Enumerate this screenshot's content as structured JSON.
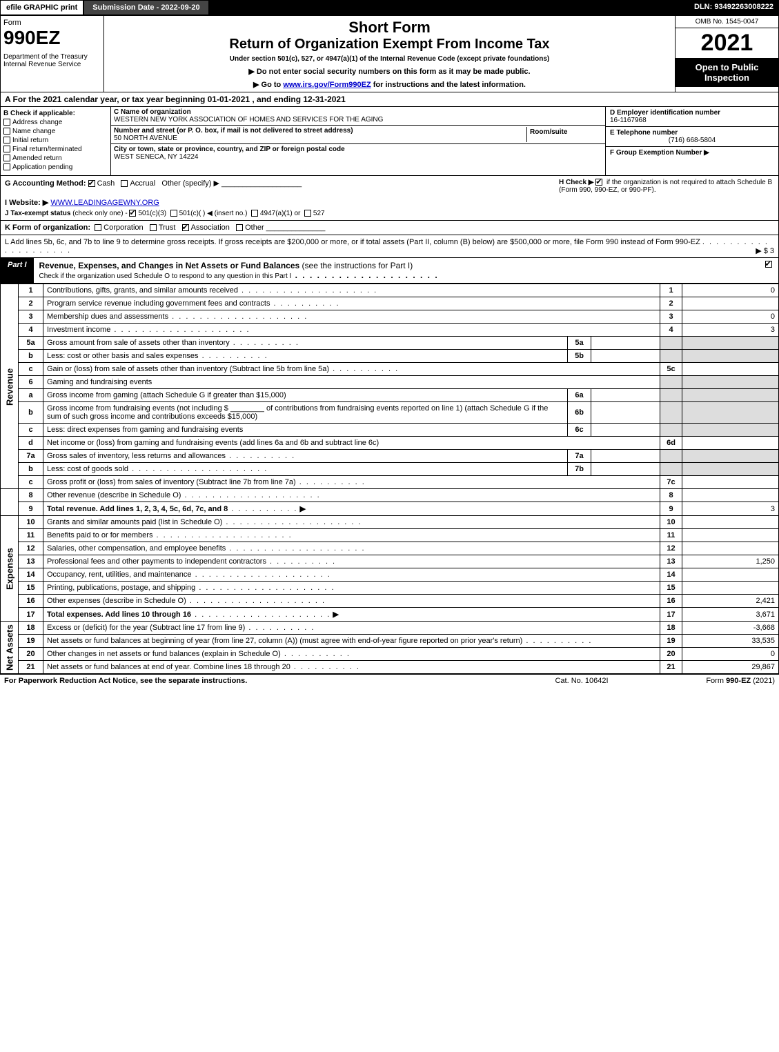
{
  "top": {
    "efile": "efile GRAPHIC print",
    "submission_date_label": "Submission Date - 2022-09-20",
    "dln": "DLN: 93492263008222"
  },
  "header": {
    "form_word": "Form",
    "form_number": "990EZ",
    "dept": "Department of the Treasury\nInternal Revenue Service",
    "short_form": "Short Form",
    "title": "Return of Organization Exempt From Income Tax",
    "under": "Under section 501(c), 527, or 4947(a)(1) of the Internal Revenue Code (except private foundations)",
    "ssn_note": "▶ Do not enter social security numbers on this form as it may be made public.",
    "goto_prefix": "▶ Go to ",
    "goto_link": "www.irs.gov/Form990EZ",
    "goto_suffix": " for instructions and the latest information.",
    "omb": "OMB No. 1545-0047",
    "year": "2021",
    "inspect": "Open to Public Inspection"
  },
  "section_a": "A  For the 2021 calendar year, or tax year beginning 01-01-2021 , and ending 12-31-2021",
  "b": {
    "head": "B  Check if applicable:",
    "opts": {
      "address": "Address change",
      "name": "Name change",
      "initial": "Initial return",
      "final": "Final return/terminated",
      "amended": "Amended return",
      "pending": "Application pending"
    }
  },
  "c": {
    "name_lbl": "C Name of organization",
    "name": "WESTERN NEW YORK ASSOCIATION OF HOMES AND SERVICES FOR THE AGING",
    "street_lbl": "Number and street (or P. O. box, if mail is not delivered to street address)",
    "room_lbl": "Room/suite",
    "street": "50 NORTH AVENUE",
    "city_lbl": "City or town, state or province, country, and ZIP or foreign postal code",
    "city": "WEST SENECA, NY  14224"
  },
  "d": {
    "label": "D Employer identification number",
    "value": "16-1167968"
  },
  "e": {
    "label": "E Telephone number",
    "value": "(716) 668-5804"
  },
  "f": {
    "label": "F Group Exemption Number  ▶",
    "value": ""
  },
  "g": {
    "label": "G Accounting Method:",
    "cash": "Cash",
    "accrual": "Accrual",
    "other": "Other (specify) ▶"
  },
  "h": {
    "prefix": "H  Check ▶ ",
    "text": " if the organization is not required to attach Schedule B (Form 990, 990-EZ, or 990-PF)."
  },
  "i": {
    "label": "I Website: ▶",
    "value": "WWW.LEADINGAGEWNY.ORG"
  },
  "j": {
    "label": "J Tax-exempt status",
    "note": "(check only one) -",
    "o501c3": "501(c)(3)",
    "o501c": "501(c)(   ) ◀ (insert no.)",
    "o4947": "4947(a)(1) or",
    "o527": "527"
  },
  "k": {
    "label": "K Form of organization:",
    "corp": "Corporation",
    "trust": "Trust",
    "assoc": "Association",
    "other": "Other"
  },
  "l": {
    "text": "L Add lines 5b, 6c, and 7b to line 9 to determine gross receipts. If gross receipts are $200,000 or more, or if total assets (Part II, column (B) below) are $500,000 or more, file Form 990 instead of Form 990-EZ",
    "amount": "▶ $ 3"
  },
  "part1": {
    "tab": "Part I",
    "title": "Revenue, Expenses, and Changes in Net Assets or Fund Balances",
    "subtitle": " (see the instructions for Part I)",
    "check_note": "Check if the organization used Schedule O to respond to any question in this Part I"
  },
  "lines": {
    "l1": {
      "num": "1",
      "desc": "Contributions, gifts, grants, and similar amounts received",
      "rn": "1",
      "amt": "0"
    },
    "l2": {
      "num": "2",
      "desc": "Program service revenue including government fees and contracts",
      "rn": "2",
      "amt": ""
    },
    "l3": {
      "num": "3",
      "desc": "Membership dues and assessments",
      "rn": "3",
      "amt": "0"
    },
    "l4": {
      "num": "4",
      "desc": "Investment income",
      "rn": "4",
      "amt": "3"
    },
    "l5a": {
      "num": "5a",
      "desc": "Gross amount from sale of assets other than inventory",
      "mn": "5a",
      "mamt": ""
    },
    "l5b": {
      "num": "b",
      "desc": "Less: cost or other basis and sales expenses",
      "mn": "5b",
      "mamt": ""
    },
    "l5c": {
      "num": "c",
      "desc": "Gain or (loss) from sale of assets other than inventory (Subtract line 5b from line 5a)",
      "rn": "5c",
      "amt": ""
    },
    "l6": {
      "num": "6",
      "desc": "Gaming and fundraising events"
    },
    "l6a": {
      "num": "a",
      "desc": "Gross income from gaming (attach Schedule G if greater than $15,000)",
      "mn": "6a",
      "mamt": ""
    },
    "l6b": {
      "num": "b",
      "desc1": "Gross income from fundraising events (not including $",
      "desc2": "of contributions from fundraising events reported on line 1) (attach Schedule G if the sum of such gross income and contributions exceeds $15,000)",
      "mn": "6b",
      "mamt": ""
    },
    "l6c": {
      "num": "c",
      "desc": "Less: direct expenses from gaming and fundraising events",
      "mn": "6c",
      "mamt": ""
    },
    "l6d": {
      "num": "d",
      "desc": "Net income or (loss) from gaming and fundraising events (add lines 6a and 6b and subtract line 6c)",
      "rn": "6d",
      "amt": ""
    },
    "l7a": {
      "num": "7a",
      "desc": "Gross sales of inventory, less returns and allowances",
      "mn": "7a",
      "mamt": ""
    },
    "l7b": {
      "num": "b",
      "desc": "Less: cost of goods sold",
      "mn": "7b",
      "mamt": ""
    },
    "l7c": {
      "num": "c",
      "desc": "Gross profit or (loss) from sales of inventory (Subtract line 7b from line 7a)",
      "rn": "7c",
      "amt": ""
    },
    "l8": {
      "num": "8",
      "desc": "Other revenue (describe in Schedule O)",
      "rn": "8",
      "amt": ""
    },
    "l9": {
      "num": "9",
      "desc": "Total revenue. Add lines 1, 2, 3, 4, 5c, 6d, 7c, and 8",
      "rn": "9",
      "amt": "3",
      "arrow": "▶"
    },
    "l10": {
      "num": "10",
      "desc": "Grants and similar amounts paid (list in Schedule O)",
      "rn": "10",
      "amt": ""
    },
    "l11": {
      "num": "11",
      "desc": "Benefits paid to or for members",
      "rn": "11",
      "amt": ""
    },
    "l12": {
      "num": "12",
      "desc": "Salaries, other compensation, and employee benefits",
      "rn": "12",
      "amt": ""
    },
    "l13": {
      "num": "13",
      "desc": "Professional fees and other payments to independent contractors",
      "rn": "13",
      "amt": "1,250"
    },
    "l14": {
      "num": "14",
      "desc": "Occupancy, rent, utilities, and maintenance",
      "rn": "14",
      "amt": ""
    },
    "l15": {
      "num": "15",
      "desc": "Printing, publications, postage, and shipping",
      "rn": "15",
      "amt": ""
    },
    "l16": {
      "num": "16",
      "desc": "Other expenses (describe in Schedule O)",
      "rn": "16",
      "amt": "2,421"
    },
    "l17": {
      "num": "17",
      "desc": "Total expenses. Add lines 10 through 16",
      "rn": "17",
      "amt": "3,671",
      "arrow": "▶"
    },
    "l18": {
      "num": "18",
      "desc": "Excess or (deficit) for the year (Subtract line 17 from line 9)",
      "rn": "18",
      "amt": "-3,668"
    },
    "l19": {
      "num": "19",
      "desc": "Net assets or fund balances at beginning of year (from line 27, column (A)) (must agree with end-of-year figure reported on prior year's return)",
      "rn": "19",
      "amt": "33,535"
    },
    "l20": {
      "num": "20",
      "desc": "Other changes in net assets or fund balances (explain in Schedule O)",
      "rn": "20",
      "amt": "0"
    },
    "l21": {
      "num": "21",
      "desc": "Net assets or fund balances at end of year. Combine lines 18 through 20",
      "rn": "21",
      "amt": "29,867"
    }
  },
  "side_labels": {
    "revenue": "Revenue",
    "expenses": "Expenses",
    "netassets": "Net Assets"
  },
  "footer": {
    "left": "For Paperwork Reduction Act Notice, see the separate instructions.",
    "mid": "Cat. No. 10642I",
    "right_prefix": "Form ",
    "right_form": "990-EZ",
    "right_suffix": " (2021)"
  }
}
